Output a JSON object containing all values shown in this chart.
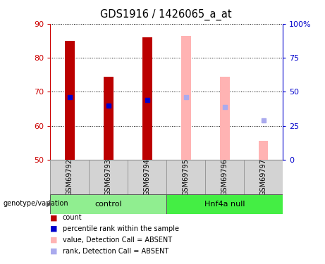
{
  "title": "GDS1916 / 1426065_a_at",
  "samples": [
    "GSM69792",
    "GSM69793",
    "GSM69794",
    "GSM69795",
    "GSM69796",
    "GSM69797"
  ],
  "bar_tops": [
    85,
    74.5,
    86,
    86.5,
    74.5,
    55.5
  ],
  "bar_bottoms": [
    50,
    50,
    50,
    50,
    50,
    50
  ],
  "rank_values": [
    68.5,
    66,
    67.5,
    68.5,
    65.5,
    61.5
  ],
  "bar_colors_solid": [
    "#bb0000",
    "#bb0000",
    "#bb0000",
    null,
    null,
    null
  ],
  "bar_colors_absent": [
    null,
    null,
    null,
    "#ffb3b3",
    "#ffb3b3",
    "#ffb3b3"
  ],
  "rank_colors_solid": [
    "#0000cc",
    "#0000cc",
    "#0000cc",
    null,
    null,
    null
  ],
  "rank_colors_absent": [
    null,
    null,
    null,
    "#aaaaee",
    "#aaaaee",
    "#aaaaee"
  ],
  "ylim": [
    50,
    90
  ],
  "y2lim": [
    0,
    100
  ],
  "yticks": [
    50,
    60,
    70,
    80,
    90
  ],
  "y2ticks": [
    0,
    25,
    50,
    75,
    100
  ],
  "group_defs": [
    {
      "label": "control",
      "start": 0,
      "end": 2,
      "color": "#90ee90"
    },
    {
      "label": "Hnf4a null",
      "start": 3,
      "end": 5,
      "color": "#44ee44"
    }
  ],
  "legend_items": [
    {
      "label": "count",
      "color": "#bb0000"
    },
    {
      "label": "percentile rank within the sample",
      "color": "#0000cc"
    },
    {
      "label": "value, Detection Call = ABSENT",
      "color": "#ffb3b3"
    },
    {
      "label": "rank, Detection Call = ABSENT",
      "color": "#aaaaee"
    }
  ],
  "bar_width": 0.25,
  "rank_marker_size": 5,
  "y_label_color": "#cc0000",
  "y2_label_color": "#0000cc",
  "left_label": "genotype/variation"
}
